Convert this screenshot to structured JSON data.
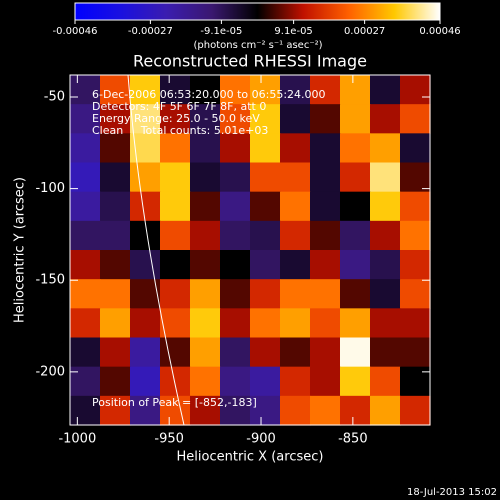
{
  "chart_data": {
    "type": "image",
    "title": "Reconstructed RHESSI Image",
    "xlabel": "Heliocentric X (arcsec)",
    "ylabel": "Heliocentric Y (arcsec)",
    "xlim": [
      -1004,
      -808
    ],
    "ylim": [
      -229,
      -38
    ],
    "xticks": [
      -1000,
      -950,
      -900,
      -850
    ],
    "yticks": [
      -50,
      -100,
      -150,
      -200
    ],
    "colorbar_label": "(photons cm⁻² s⁻¹ asec⁻²)",
    "clim": [
      -0.00046,
      0.00046
    ],
    "colorbar_ticks": [
      -0.00046,
      -0.00027,
      {
        "value": -9.1e-05,
        "label": "-9.1e-05"
      },
      {
        "value": 9.1e-05,
        "label": "9.1e-05"
      },
      0.00027,
      0.00046
    ],
    "colormap": [
      "#0000ff",
      "#1a10e0",
      "#3a1cb0",
      "#3a1870",
      "#000000",
      "#c01000",
      "#ff6000",
      "#ffc800",
      "#ffffff"
    ],
    "annotations": [
      "6-Dec-2006 06:53:20.000 to 06:55:24.000",
      "Detectors: 4F 5F 6F 7F 8F, att 0",
      "Energy Range: 25.0 - 50.0 keV",
      "Clean     Total counts: 5.01e+03",
      "Position of Peak = [-852,-183]"
    ],
    "footer": "18-Jul-2013 15:02",
    "z": [
      [
        -0.0001,
        0.0002,
        0.00035,
        -5e-05,
        0,
        0.00025,
        0.0003,
        -8e-05,
        0.00015,
        0.0003,
        -5e-05,
        0.0001
      ],
      [
        -0.00015,
        0.0001,
        0.0004,
        0.0001,
        -8e-05,
        0.0002,
        0.00035,
        -5e-05,
        5e-05,
        0.0003,
        0.0001,
        0.0002
      ],
      [
        -0.0002,
        5e-05,
        0.00038,
        0.00025,
        -8e-05,
        0.0001,
        0.00035,
        0.0001,
        -5e-05,
        0.00025,
        0.0003,
        -5e-05
      ],
      [
        -0.00025,
        -5e-05,
        0.0003,
        0.00035,
        -5e-05,
        -8e-05,
        0.0002,
        0.0002,
        -5e-05,
        0.00015,
        0.0004,
        5e-05
      ],
      [
        -0.0002,
        -8e-05,
        0.00015,
        0.00035,
        5e-05,
        -0.00015,
        5e-05,
        0.00025,
        -5e-05,
        0,
        0.00035,
        0.0002
      ],
      [
        -0.0001,
        -0.0001,
        0,
        0.0002,
        0.0001,
        -0.0001,
        -8e-05,
        0.00015,
        5e-05,
        -0.0001,
        0.0001,
        0.00025
      ],
      [
        0.0001,
        5e-05,
        -8e-05,
        0,
        5e-05,
        0,
        -0.0001,
        -5e-05,
        0.0001,
        -0.00015,
        -8e-05,
        0.00015
      ],
      [
        0.00025,
        0.00025,
        5e-05,
        0.00015,
        0.0003,
        5e-05,
        0.00015,
        0.00025,
        0.00025,
        5e-05,
        -5e-05,
        0.0002
      ],
      [
        0.00015,
        0.0003,
        0.0001,
        0.0002,
        0.00035,
        0.0001,
        0.00025,
        0.0003,
        0.0002,
        0.0003,
        0.0001,
        0.0001
      ],
      [
        -5e-05,
        0.0001,
        -0.0002,
        5e-05,
        0.0003,
        -0.0001,
        0.0001,
        5e-05,
        0.0001,
        0.00045,
        5e-05,
        5e-05
      ],
      [
        -0.0001,
        5e-05,
        -0.00025,
        0.00015,
        0.00025,
        -0.00015,
        -0.0002,
        0.00015,
        0.0001,
        0.00035,
        0.0002,
        0
      ],
      [
        -5e-05,
        0.00015,
        -0.00015,
        0.0002,
        0.0001,
        -0.0001,
        -0.00015,
        0.0002,
        0.00025,
        0.00015,
        0.0003,
        0.00015
      ]
    ]
  }
}
